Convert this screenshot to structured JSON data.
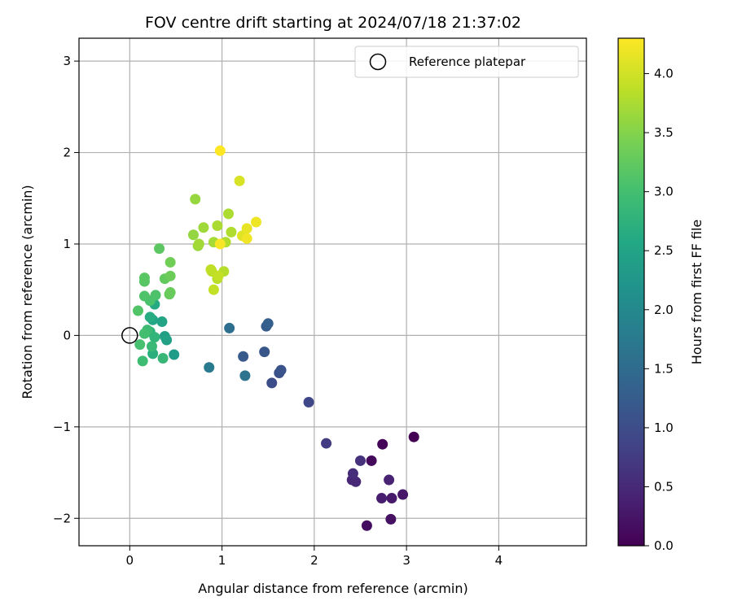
{
  "chart_data": {
    "type": "scatter",
    "title": "FOV centre drift starting at 2024/07/18 21:37:02",
    "xlabel": "Angular distance from reference (arcmin)",
    "ylabel": "Rotation from reference (arcmin)",
    "xlim": [
      -0.55,
      4.95
    ],
    "ylim": [
      -2.3,
      3.25
    ],
    "x_ticks": [
      0,
      1,
      2,
      3,
      4
    ],
    "y_ticks": [
      -2,
      -1,
      0,
      1,
      2,
      3
    ],
    "grid": true,
    "legend": {
      "placement": "upper-right",
      "entries": [
        "Reference platepar"
      ]
    },
    "reference_point": {
      "x": 0.0,
      "y": 0.0,
      "label": "Reference platepar"
    },
    "colorbar": {
      "label": "Hours from first FF file",
      "colormap": "viridis",
      "range": [
        0.0,
        4.3
      ],
      "ticks": [
        0.0,
        0.5,
        1.0,
        1.5,
        2.0,
        2.5,
        3.0,
        3.5,
        4.0
      ]
    },
    "points": [
      {
        "x": 3.08,
        "y": -1.11,
        "h": 0.0
      },
      {
        "x": 2.74,
        "y": -1.19,
        "h": 0.05
      },
      {
        "x": 2.62,
        "y": -1.37,
        "h": 0.1
      },
      {
        "x": 2.57,
        "y": -2.08,
        "h": 0.15
      },
      {
        "x": 2.83,
        "y": -2.01,
        "h": 0.2
      },
      {
        "x": 2.96,
        "y": -1.74,
        "h": 0.25
      },
      {
        "x": 2.84,
        "y": -1.78,
        "h": 0.3
      },
      {
        "x": 2.73,
        "y": -1.78,
        "h": 0.35
      },
      {
        "x": 2.81,
        "y": -1.58,
        "h": 0.4
      },
      {
        "x": 2.41,
        "y": -1.58,
        "h": 0.45
      },
      {
        "x": 2.45,
        "y": -1.6,
        "h": 0.5
      },
      {
        "x": 2.42,
        "y": -1.51,
        "h": 0.55
      },
      {
        "x": 2.5,
        "y": -1.37,
        "h": 0.6
      },
      {
        "x": 2.13,
        "y": -1.18,
        "h": 0.75
      },
      {
        "x": 1.94,
        "y": -0.73,
        "h": 0.9
      },
      {
        "x": 1.54,
        "y": -0.52,
        "h": 1.0
      },
      {
        "x": 1.62,
        "y": -0.41,
        "h": 1.05
      },
      {
        "x": 1.64,
        "y": -0.38,
        "h": 1.1
      },
      {
        "x": 1.46,
        "y": -0.18,
        "h": 1.15
      },
      {
        "x": 1.23,
        "y": -0.23,
        "h": 1.2
      },
      {
        "x": 1.48,
        "y": 0.1,
        "h": 1.25
      },
      {
        "x": 1.5,
        "y": 0.13,
        "h": 1.3
      },
      {
        "x": 1.08,
        "y": 0.08,
        "h": 1.55
      },
      {
        "x": 1.25,
        "y": -0.44,
        "h": 1.65
      },
      {
        "x": 0.86,
        "y": -0.35,
        "h": 1.75
      },
      {
        "x": 0.48,
        "y": -0.21,
        "h": 2.35
      },
      {
        "x": 0.38,
        "y": -0.01,
        "h": 2.4
      },
      {
        "x": 0.4,
        "y": -0.05,
        "h": 2.45
      },
      {
        "x": 0.35,
        "y": 0.15,
        "h": 2.5
      },
      {
        "x": 0.25,
        "y": 0.17,
        "h": 2.55
      },
      {
        "x": 0.27,
        "y": 0.34,
        "h": 2.6
      },
      {
        "x": 0.22,
        "y": 0.2,
        "h": 2.65
      },
      {
        "x": 0.25,
        "y": -0.2,
        "h": 2.7
      },
      {
        "x": 0.22,
        "y": 0.04,
        "h": 2.75
      },
      {
        "x": 0.27,
        "y": -0.02,
        "h": 2.8
      },
      {
        "x": 0.36,
        "y": -0.25,
        "h": 2.85
      },
      {
        "x": 0.24,
        "y": -0.12,
        "h": 2.88
      },
      {
        "x": 0.19,
        "y": 0.06,
        "h": 2.92
      },
      {
        "x": 0.14,
        "y": -0.28,
        "h": 2.95
      },
      {
        "x": 0.16,
        "y": 0.02,
        "h": 3.0
      },
      {
        "x": 0.11,
        "y": -0.1,
        "h": 3.03
      },
      {
        "x": 0.22,
        "y": 0.38,
        "h": 3.05
      },
      {
        "x": 0.28,
        "y": 0.44,
        "h": 3.08
      },
      {
        "x": 0.16,
        "y": 0.43,
        "h": 3.1
      },
      {
        "x": 0.09,
        "y": 0.27,
        "h": 3.12
      },
      {
        "x": 0.16,
        "y": 0.59,
        "h": 3.15
      },
      {
        "x": 0.16,
        "y": 0.63,
        "h": 3.18
      },
      {
        "x": 0.32,
        "y": 0.95,
        "h": 3.2
      },
      {
        "x": 0.38,
        "y": 0.62,
        "h": 3.25
      },
      {
        "x": 0.43,
        "y": 0.45,
        "h": 3.28
      },
      {
        "x": 0.44,
        "y": 0.47,
        "h": 3.3
      },
      {
        "x": 0.44,
        "y": 0.65,
        "h": 3.33
      },
      {
        "x": 0.44,
        "y": 0.8,
        "h": 3.36
      },
      {
        "x": 0.69,
        "y": 1.1,
        "h": 3.6
      },
      {
        "x": 0.71,
        "y": 1.49,
        "h": 3.62
      },
      {
        "x": 0.74,
        "y": 0.98,
        "h": 3.65
      },
      {
        "x": 0.8,
        "y": 1.18,
        "h": 3.68
      },
      {
        "x": 0.75,
        "y": 1.0,
        "h": 3.7
      },
      {
        "x": 0.91,
        "y": 1.02,
        "h": 3.72
      },
      {
        "x": 0.95,
        "y": 1.2,
        "h": 3.74
      },
      {
        "x": 1.07,
        "y": 1.33,
        "h": 3.76
      },
      {
        "x": 1.1,
        "y": 1.13,
        "h": 3.78
      },
      {
        "x": 1.04,
        "y": 1.02,
        "h": 3.8
      },
      {
        "x": 1.02,
        "y": 0.7,
        "h": 3.82
      },
      {
        "x": 0.95,
        "y": 0.62,
        "h": 3.84
      },
      {
        "x": 0.89,
        "y": 0.7,
        "h": 3.86
      },
      {
        "x": 0.88,
        "y": 0.72,
        "h": 3.88
      },
      {
        "x": 0.91,
        "y": 0.5,
        "h": 3.9
      },
      {
        "x": 0.96,
        "y": 0.65,
        "h": 3.92
      },
      {
        "x": 1.19,
        "y": 1.69,
        "h": 4.05
      },
      {
        "x": 1.22,
        "y": 1.09,
        "h": 4.1
      },
      {
        "x": 1.27,
        "y": 1.17,
        "h": 4.15
      },
      {
        "x": 1.37,
        "y": 1.24,
        "h": 4.2
      },
      {
        "x": 1.27,
        "y": 1.06,
        "h": 4.22
      },
      {
        "x": 0.98,
        "y": 1.0,
        "h": 4.25
      },
      {
        "x": 0.98,
        "y": 2.02,
        "h": 4.3
      }
    ]
  }
}
